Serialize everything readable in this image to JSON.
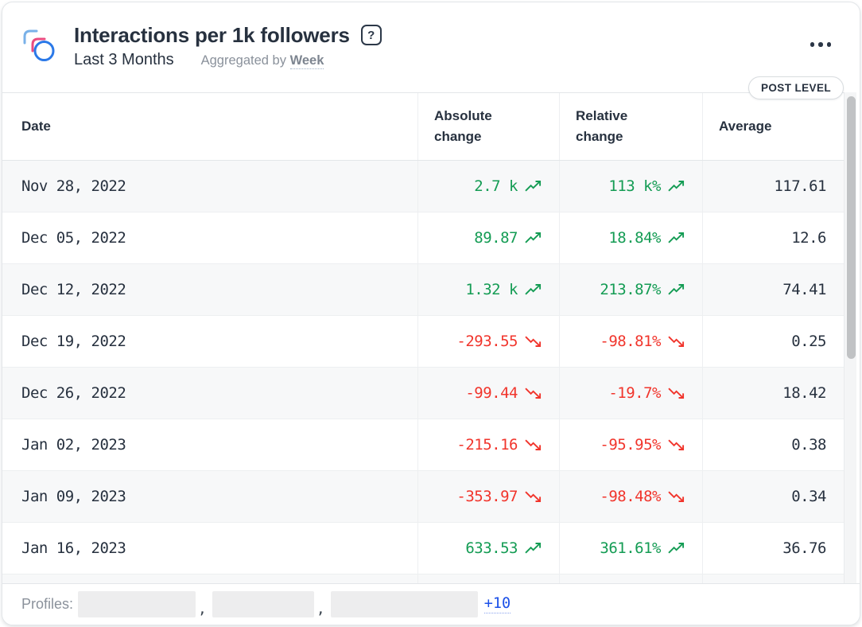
{
  "header": {
    "title": "Interactions per 1k followers",
    "help_glyph": "?",
    "date_range": "Last 3 Months",
    "aggregated_by_label": "Aggregated by",
    "aggregated_by_value": "Week",
    "badge": "POST LEVEL"
  },
  "table": {
    "columns": [
      "Date",
      "Absolute change",
      "Relative change",
      "Average"
    ],
    "rows": [
      {
        "date": "Nov 28, 2022",
        "absolute": "2.7 k",
        "absolute_trend": "up",
        "relative": "113 k%",
        "relative_trend": "up",
        "average": "117.61"
      },
      {
        "date": "Dec 05, 2022",
        "absolute": "89.87",
        "absolute_trend": "up",
        "relative": "18.84%",
        "relative_trend": "up",
        "average": "12.6"
      },
      {
        "date": "Dec 12, 2022",
        "absolute": "1.32 k",
        "absolute_trend": "up",
        "relative": "213.87%",
        "relative_trend": "up",
        "average": "74.41"
      },
      {
        "date": "Dec 19, 2022",
        "absolute": "-293.55",
        "absolute_trend": "down",
        "relative": "-98.81%",
        "relative_trend": "down",
        "average": "0.25"
      },
      {
        "date": "Dec 26, 2022",
        "absolute": "-99.44",
        "absolute_trend": "down",
        "relative": "-19.7%",
        "relative_trend": "down",
        "average": "18.42"
      },
      {
        "date": "Jan 02, 2023",
        "absolute": "-215.16",
        "absolute_trend": "down",
        "relative": "-95.95%",
        "relative_trend": "down",
        "average": "0.38"
      },
      {
        "date": "Jan 09, 2023",
        "absolute": "-353.97",
        "absolute_trend": "down",
        "relative": "-98.48%",
        "relative_trend": "down",
        "average": "0.34"
      },
      {
        "date": "Jan 16, 2023",
        "absolute": "633.53",
        "absolute_trend": "up",
        "relative": "361.61%",
        "relative_trend": "up",
        "average": "36.76"
      }
    ]
  },
  "footer": {
    "label": "Profiles:",
    "redacted_profiles": 3,
    "separator": ",",
    "more_link": "+10"
  },
  "colors": {
    "positive": "#149c54",
    "negative": "#f1352c",
    "link": "#1b50e8",
    "text": "#27313f",
    "muted": "#8a919b",
    "icon_blue": "#79b1e8",
    "icon_pink": "#ea4b81",
    "icon_circle": "#2b79e8"
  }
}
